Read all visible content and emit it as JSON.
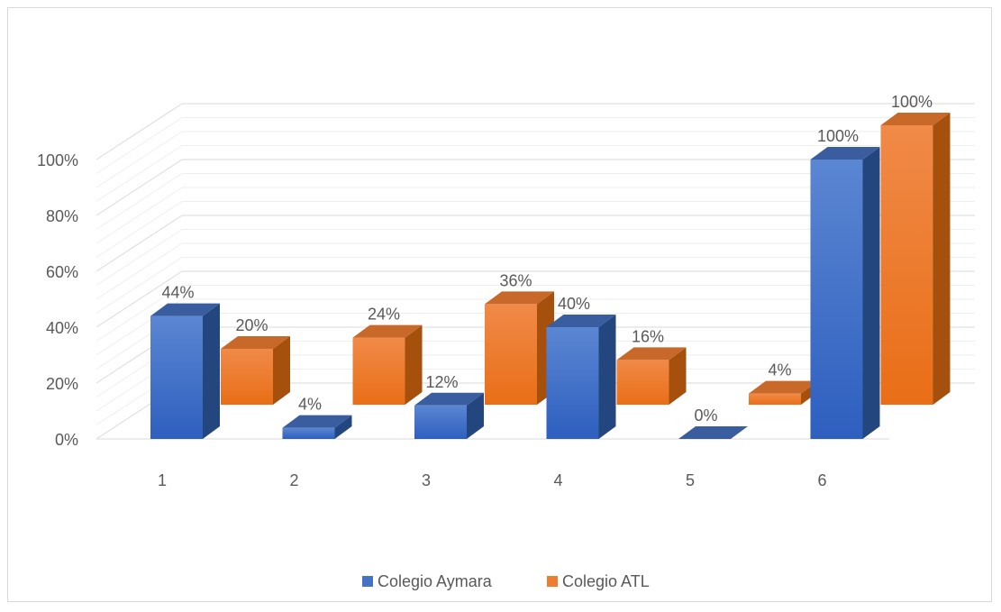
{
  "chart_data": {
    "type": "bar",
    "title": "",
    "xlabel": "",
    "ylabel": "",
    "categories": [
      "1",
      "2",
      "3",
      "4",
      "5",
      "6"
    ],
    "series": [
      {
        "name": "Colegio Aymara",
        "values": [
          44,
          4,
          12,
          40,
          0,
          100
        ],
        "labels": [
          "44%",
          "4%",
          "12%",
          "40%",
          "0%",
          "100%"
        ],
        "color": "#4472C4"
      },
      {
        "name": "Colegio ATL",
        "values": [
          20,
          24,
          36,
          16,
          4,
          100
        ],
        "labels": [
          "20%",
          "24%",
          "36%",
          "16%",
          "4%",
          "100%"
        ],
        "color": "#ED7D31"
      }
    ],
    "yticks": [
      0,
      20,
      40,
      60,
      80,
      100
    ],
    "ytick_labels": [
      "0%",
      "20%",
      "40%",
      "60%",
      "80%",
      "100%"
    ],
    "ylim": [
      0,
      100
    ],
    "grid": true,
    "three_d": true,
    "legend_position": "bottom"
  }
}
